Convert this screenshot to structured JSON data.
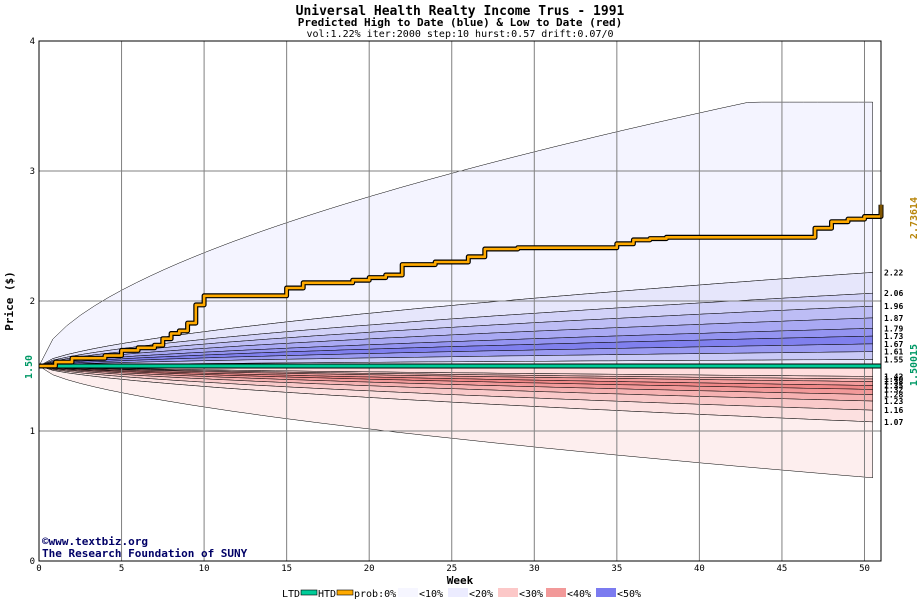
{
  "header": {
    "title": "Universal Health Realty Income Trus - 1991",
    "subtitle": "Predicted High to Date (blue) &  Low to Date (red)",
    "params": "vol:1.22% iter:2000 step:10 hurst:0.57 drift:0.07/0"
  },
  "axes": {
    "xlabel": "Week",
    "ylabel": "Price ($)",
    "x_ticks": [
      "0",
      "5",
      "10",
      "15",
      "20",
      "25",
      "30",
      "35",
      "40",
      "45",
      "50"
    ],
    "y_ticks": [
      "0",
      "1",
      "2",
      "3",
      "4"
    ]
  },
  "credits": {
    "site": "©www.textbiz.org",
    "org": "The Research Foundation of SUNY"
  },
  "markers": {
    "start_value": "1.50",
    "right_high": "2.73614",
    "right_low": "1.50015",
    "right_high_color": "#b8860b",
    "right_low_color": "#009966"
  },
  "legend": {
    "ltd_label": "LTD",
    "htd_label": "HTD",
    "prob_label": "prob:0%",
    "bins": [
      "<10%",
      "<20%",
      "<30%",
      "<40%",
      "<50%"
    ],
    "ltd_color": "#00cc99",
    "htd_color": "#ffaa00"
  },
  "chart_data": {
    "type": "area",
    "title": "Universal Health Realty Income Trus - 1991",
    "xlabel": "Week",
    "ylabel": "Price ($)",
    "xlim": [
      0,
      51
    ],
    "ylim": [
      0,
      4
    ],
    "grid": true,
    "legend_position": "bottom",
    "start_price": 1.5,
    "high_band_levels_end": [
      3.53,
      2.22,
      2.06,
      1.96,
      1.87,
      1.79,
      1.73,
      1.67,
      1.61,
      1.55
    ],
    "low_band_levels_end": [
      1.42,
      1.4,
      1.38,
      1.35,
      1.32,
      1.28,
      1.23,
      1.16,
      1.07,
      0.64
    ],
    "right_labels_high": [
      "2.22",
      "2.06",
      "1.96",
      "1.87",
      "1.79",
      "1.73",
      "1.67",
      "1.61",
      "1.55"
    ],
    "right_labels_low": [
      "1.42",
      "1.40",
      "1.38",
      "1.35",
      "1.32",
      "1.28",
      "1.23",
      "1.16",
      "1.07"
    ],
    "htd_series": {
      "name": "HTD",
      "x": [
        0,
        1,
        2,
        3,
        4,
        5,
        6,
        7,
        7.5,
        8,
        8.5,
        9,
        9.5,
        10,
        11,
        14,
        15,
        16,
        19,
        20,
        21,
        22,
        24,
        25,
        26,
        27,
        29,
        30,
        31,
        35,
        36,
        37,
        38,
        39,
        40,
        41,
        46,
        47,
        48,
        49,
        50,
        51
      ],
      "y": [
        1.5,
        1.53,
        1.56,
        1.56,
        1.58,
        1.62,
        1.64,
        1.66,
        1.71,
        1.75,
        1.77,
        1.83,
        1.97,
        2.04,
        2.04,
        2.04,
        2.1,
        2.14,
        2.16,
        2.18,
        2.2,
        2.28,
        2.3,
        2.3,
        2.34,
        2.4,
        2.41,
        2.41,
        2.41,
        2.44,
        2.47,
        2.48,
        2.49,
        2.49,
        2.49,
        2.49,
        2.49,
        2.56,
        2.61,
        2.63,
        2.65,
        2.74
      ]
    },
    "ltd_series": {
      "name": "LTD",
      "x": [
        0,
        51
      ],
      "y": [
        1.5,
        1.50015
      ]
    }
  }
}
